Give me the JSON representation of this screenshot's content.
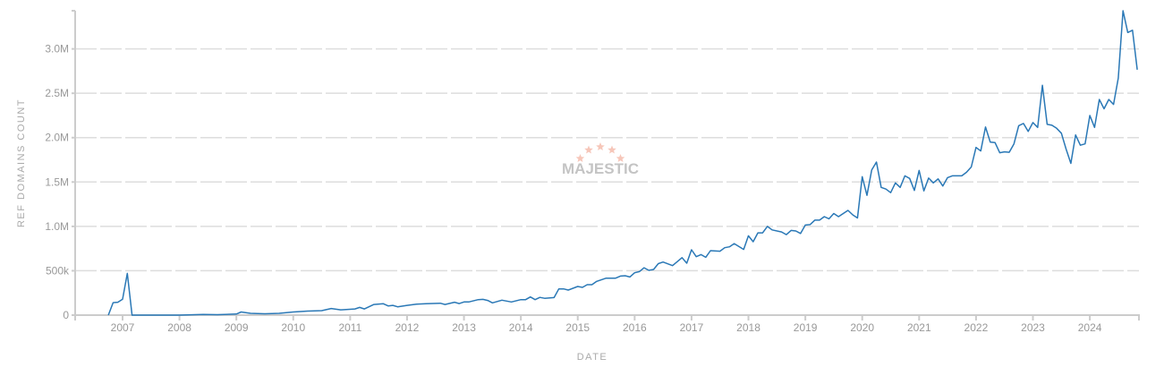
{
  "chart_data": {
    "type": "line",
    "xlabel": "DATE",
    "ylabel": "REF DOMAINS COUNT",
    "xlim": [
      "2006-03",
      "2024-11"
    ],
    "ylim": [
      0,
      3430000
    ],
    "grid": true,
    "x_ticks": [
      "2007",
      "2008",
      "2009",
      "2010",
      "2011",
      "2012",
      "2013",
      "2014",
      "2015",
      "2016",
      "2017",
      "2018",
      "2019",
      "2020",
      "2021",
      "2022",
      "2023",
      "2024"
    ],
    "y_ticks": [
      {
        "value": 0,
        "label": "0"
      },
      {
        "value": 500000,
        "label": "500k"
      },
      {
        "value": 1000000,
        "label": "1.0M"
      },
      {
        "value": 1500000,
        "label": "1.5M"
      },
      {
        "value": 2000000,
        "label": "2.0M"
      },
      {
        "value": 2500000,
        "label": "2.5M"
      },
      {
        "value": 3000000,
        "label": "3.0M"
      }
    ],
    "line_color": "#2a78b6",
    "grid_color": "#dddddd",
    "axis_color": "#cccccc",
    "watermark": "MAJESTIC",
    "series": [
      {
        "points": [
          [
            "2006-10",
            0
          ],
          [
            "2006-11",
            140000
          ],
          [
            "2006-12",
            145000
          ],
          [
            "2007-01",
            180000
          ],
          [
            "2007-02",
            470000
          ],
          [
            "2007-03",
            0
          ],
          [
            "2007-06",
            0
          ],
          [
            "2008-01",
            0
          ],
          [
            "2008-06",
            8000
          ],
          [
            "2008-09",
            5000
          ],
          [
            "2009-01",
            12000
          ],
          [
            "2009-02",
            35000
          ],
          [
            "2009-04",
            20000
          ],
          [
            "2009-07",
            15000
          ],
          [
            "2009-10",
            20000
          ],
          [
            "2010-01",
            35000
          ],
          [
            "2010-04",
            45000
          ],
          [
            "2010-07",
            50000
          ],
          [
            "2010-09",
            75000
          ],
          [
            "2010-11",
            60000
          ],
          [
            "2011-02",
            70000
          ],
          [
            "2011-03",
            87000
          ],
          [
            "2011-04",
            70000
          ],
          [
            "2011-06",
            120000
          ],
          [
            "2011-08",
            128000
          ],
          [
            "2011-09",
            104000
          ],
          [
            "2011-10",
            110000
          ],
          [
            "2011-11",
            94000
          ],
          [
            "2012-01",
            110000
          ],
          [
            "2012-03",
            124000
          ],
          [
            "2012-05",
            128000
          ],
          [
            "2012-08",
            134000
          ],
          [
            "2012-09",
            120000
          ],
          [
            "2012-11",
            145000
          ],
          [
            "2012-12",
            130000
          ],
          [
            "2013-01",
            148000
          ],
          [
            "2013-02",
            148000
          ],
          [
            "2013-04",
            175000
          ],
          [
            "2013-05",
            178000
          ],
          [
            "2013-06",
            165000
          ],
          [
            "2013-07",
            138000
          ],
          [
            "2013-09",
            168000
          ],
          [
            "2013-11",
            148000
          ],
          [
            "2014-01",
            175000
          ],
          [
            "2014-02",
            175000
          ],
          [
            "2014-03",
            205000
          ],
          [
            "2014-04",
            175000
          ],
          [
            "2014-05",
            200000
          ],
          [
            "2014-06",
            190000
          ],
          [
            "2014-08",
            198000
          ],
          [
            "2014-09",
            296000
          ],
          [
            "2014-10",
            296000
          ],
          [
            "2014-11",
            282000
          ],
          [
            "2015-01",
            323000
          ],
          [
            "2015-02",
            313000
          ],
          [
            "2015-03",
            343000
          ],
          [
            "2015-04",
            343000
          ],
          [
            "2015-05",
            380000
          ],
          [
            "2015-07",
            417000
          ],
          [
            "2015-09",
            417000
          ],
          [
            "2015-10",
            440000
          ],
          [
            "2015-11",
            444000
          ],
          [
            "2015-12",
            430000
          ],
          [
            "2016-01",
            477000
          ],
          [
            "2016-02",
            490000
          ],
          [
            "2016-03",
            534000
          ],
          [
            "2016-04",
            504000
          ],
          [
            "2016-05",
            514000
          ],
          [
            "2016-06",
            580000
          ],
          [
            "2016-07",
            598000
          ],
          [
            "2016-09",
            558000
          ],
          [
            "2016-11",
            648000
          ],
          [
            "2016-12",
            585000
          ],
          [
            "2017-01",
            736000
          ],
          [
            "2017-02",
            659000
          ],
          [
            "2017-03",
            682000
          ],
          [
            "2017-04",
            652000
          ],
          [
            "2017-05",
            726000
          ],
          [
            "2017-07",
            720000
          ],
          [
            "2017-08",
            760000
          ],
          [
            "2017-09",
            770000
          ],
          [
            "2017-10",
            806000
          ],
          [
            "2017-12",
            740000
          ],
          [
            "2018-01",
            894000
          ],
          [
            "2018-02",
            827000
          ],
          [
            "2018-03",
            927000
          ],
          [
            "2018-04",
            927000
          ],
          [
            "2018-05",
            1000000
          ],
          [
            "2018-06",
            960000
          ],
          [
            "2018-08",
            937000
          ],
          [
            "2018-09",
            907000
          ],
          [
            "2018-10",
            954000
          ],
          [
            "2018-11",
            948000
          ],
          [
            "2018-12",
            920000
          ],
          [
            "2019-01",
            1015000
          ],
          [
            "2019-02",
            1020000
          ],
          [
            "2019-03",
            1070000
          ],
          [
            "2019-04",
            1070000
          ],
          [
            "2019-05",
            1110000
          ],
          [
            "2019-06",
            1085000
          ],
          [
            "2019-07",
            1145000
          ],
          [
            "2019-08",
            1110000
          ],
          [
            "2019-10",
            1180000
          ],
          [
            "2019-11",
            1130000
          ],
          [
            "2019-12",
            1095000
          ],
          [
            "2020-01",
            1560000
          ],
          [
            "2020-02",
            1350000
          ],
          [
            "2020-03",
            1635000
          ],
          [
            "2020-04",
            1725000
          ],
          [
            "2020-05",
            1440000
          ],
          [
            "2020-06",
            1420000
          ],
          [
            "2020-07",
            1380000
          ],
          [
            "2020-08",
            1490000
          ],
          [
            "2020-09",
            1440000
          ],
          [
            "2020-10",
            1570000
          ],
          [
            "2020-11",
            1540000
          ],
          [
            "2020-12",
            1405000
          ],
          [
            "2021-01",
            1630000
          ],
          [
            "2021-02",
            1400000
          ],
          [
            "2021-03",
            1545000
          ],
          [
            "2021-04",
            1490000
          ],
          [
            "2021-05",
            1535000
          ],
          [
            "2021-06",
            1455000
          ],
          [
            "2021-07",
            1550000
          ],
          [
            "2021-08",
            1570000
          ],
          [
            "2021-10",
            1570000
          ],
          [
            "2021-11",
            1610000
          ],
          [
            "2021-12",
            1670000
          ],
          [
            "2022-01",
            1890000
          ],
          [
            "2022-02",
            1850000
          ],
          [
            "2022-03",
            2120000
          ],
          [
            "2022-04",
            1950000
          ],
          [
            "2022-05",
            1945000
          ],
          [
            "2022-06",
            1830000
          ],
          [
            "2022-07",
            1840000
          ],
          [
            "2022-08",
            1835000
          ],
          [
            "2022-09",
            1930000
          ],
          [
            "2022-10",
            2135000
          ],
          [
            "2022-11",
            2160000
          ],
          [
            "2022-12",
            2070000
          ],
          [
            "2023-01",
            2170000
          ],
          [
            "2023-02",
            2115000
          ],
          [
            "2023-03",
            2590000
          ],
          [
            "2023-04",
            2150000
          ],
          [
            "2023-05",
            2140000
          ],
          [
            "2023-06",
            2105000
          ],
          [
            "2023-07",
            2050000
          ],
          [
            "2023-08",
            1870000
          ],
          [
            "2023-09",
            1710000
          ],
          [
            "2023-10",
            2030000
          ],
          [
            "2023-11",
            1915000
          ],
          [
            "2023-12",
            1930000
          ],
          [
            "2024-01",
            2250000
          ],
          [
            "2024-02",
            2115000
          ],
          [
            "2024-03",
            2430000
          ],
          [
            "2024-04",
            2325000
          ],
          [
            "2024-05",
            2430000
          ],
          [
            "2024-06",
            2375000
          ],
          [
            "2024-07",
            2670000
          ],
          [
            "2024-08",
            3430000
          ],
          [
            "2024-09",
            3185000
          ],
          [
            "2024-10",
            3210000
          ],
          [
            "2024-11",
            2765000
          ]
        ]
      }
    ]
  }
}
